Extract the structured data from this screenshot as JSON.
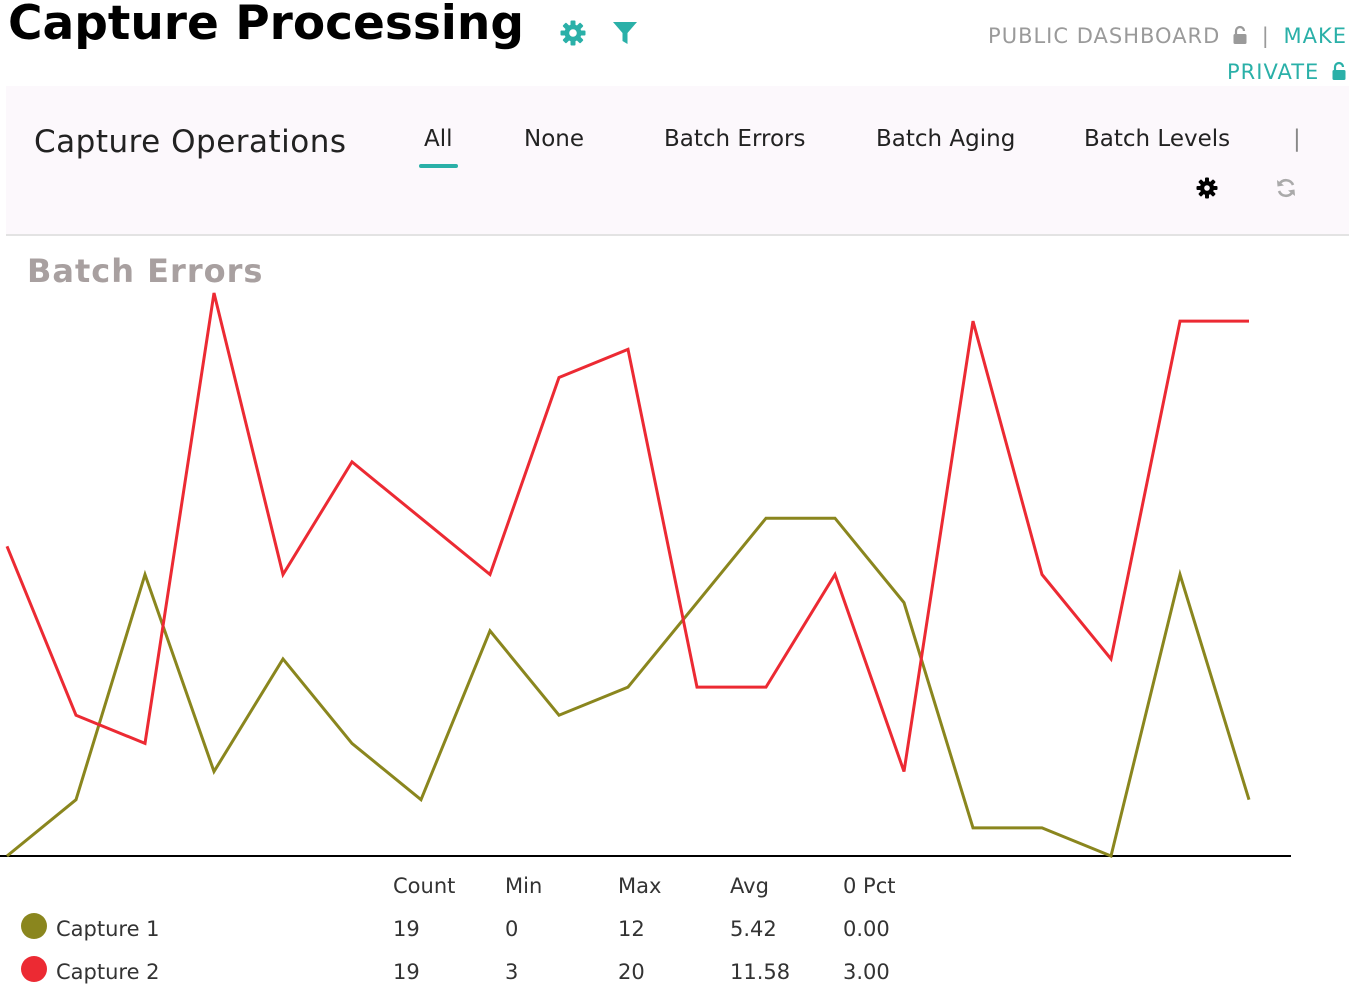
{
  "header": {
    "title": "Capture Processing",
    "public_label": "PUBLIC DASHBOARD",
    "separator": "|",
    "make_label": "MAKE",
    "private_label": "PRIVATE",
    "icons": {
      "settings": "gear-icon",
      "filter": "filter-icon",
      "lock": "lock-icon"
    }
  },
  "nav": {
    "title": "Capture Operations",
    "tabs": [
      {
        "label": "All",
        "active": true
      },
      {
        "label": "None"
      },
      {
        "label": "Batch Errors"
      },
      {
        "label": "Batch Aging"
      },
      {
        "label": "Batch Levels"
      }
    ],
    "separator": "|",
    "icons": {
      "settings": "gear-icon",
      "refresh": "refresh-icon"
    }
  },
  "colors": {
    "accent": "#2ab0a8",
    "series1": "#8a861e",
    "series2": "#ec2a33",
    "axis": "#000000"
  },
  "chart_data": {
    "type": "line",
    "title": "Batch Errors",
    "x": [
      1,
      2,
      3,
      4,
      5,
      6,
      7,
      8,
      9,
      10,
      11,
      12,
      13,
      14,
      15,
      16,
      17,
      18,
      19
    ],
    "ylim": [
      0,
      20
    ],
    "grid": false,
    "series": [
      {
        "name": "Capture 1",
        "values": [
          0,
          2,
          10,
          3,
          7,
          4,
          2,
          8,
          5,
          6,
          9,
          12,
          12,
          9,
          1,
          1,
          0,
          10,
          2
        ]
      },
      {
        "name": "Capture 2",
        "values": [
          11,
          5,
          4,
          20,
          10,
          14,
          12,
          10,
          17,
          18,
          6,
          6,
          10,
          3,
          19,
          10,
          7,
          19,
          19
        ]
      }
    ]
  },
  "stats": {
    "headers": [
      "Count",
      "Min",
      "Max",
      "Avg",
      "0 Pct"
    ],
    "rows": [
      {
        "name": "Capture 1",
        "values": [
          "19",
          "0",
          "12",
          "5.42",
          "0.00"
        ]
      },
      {
        "name": "Capture 2",
        "values": [
          "19",
          "3",
          "20",
          "11.58",
          "3.00"
        ]
      }
    ]
  }
}
